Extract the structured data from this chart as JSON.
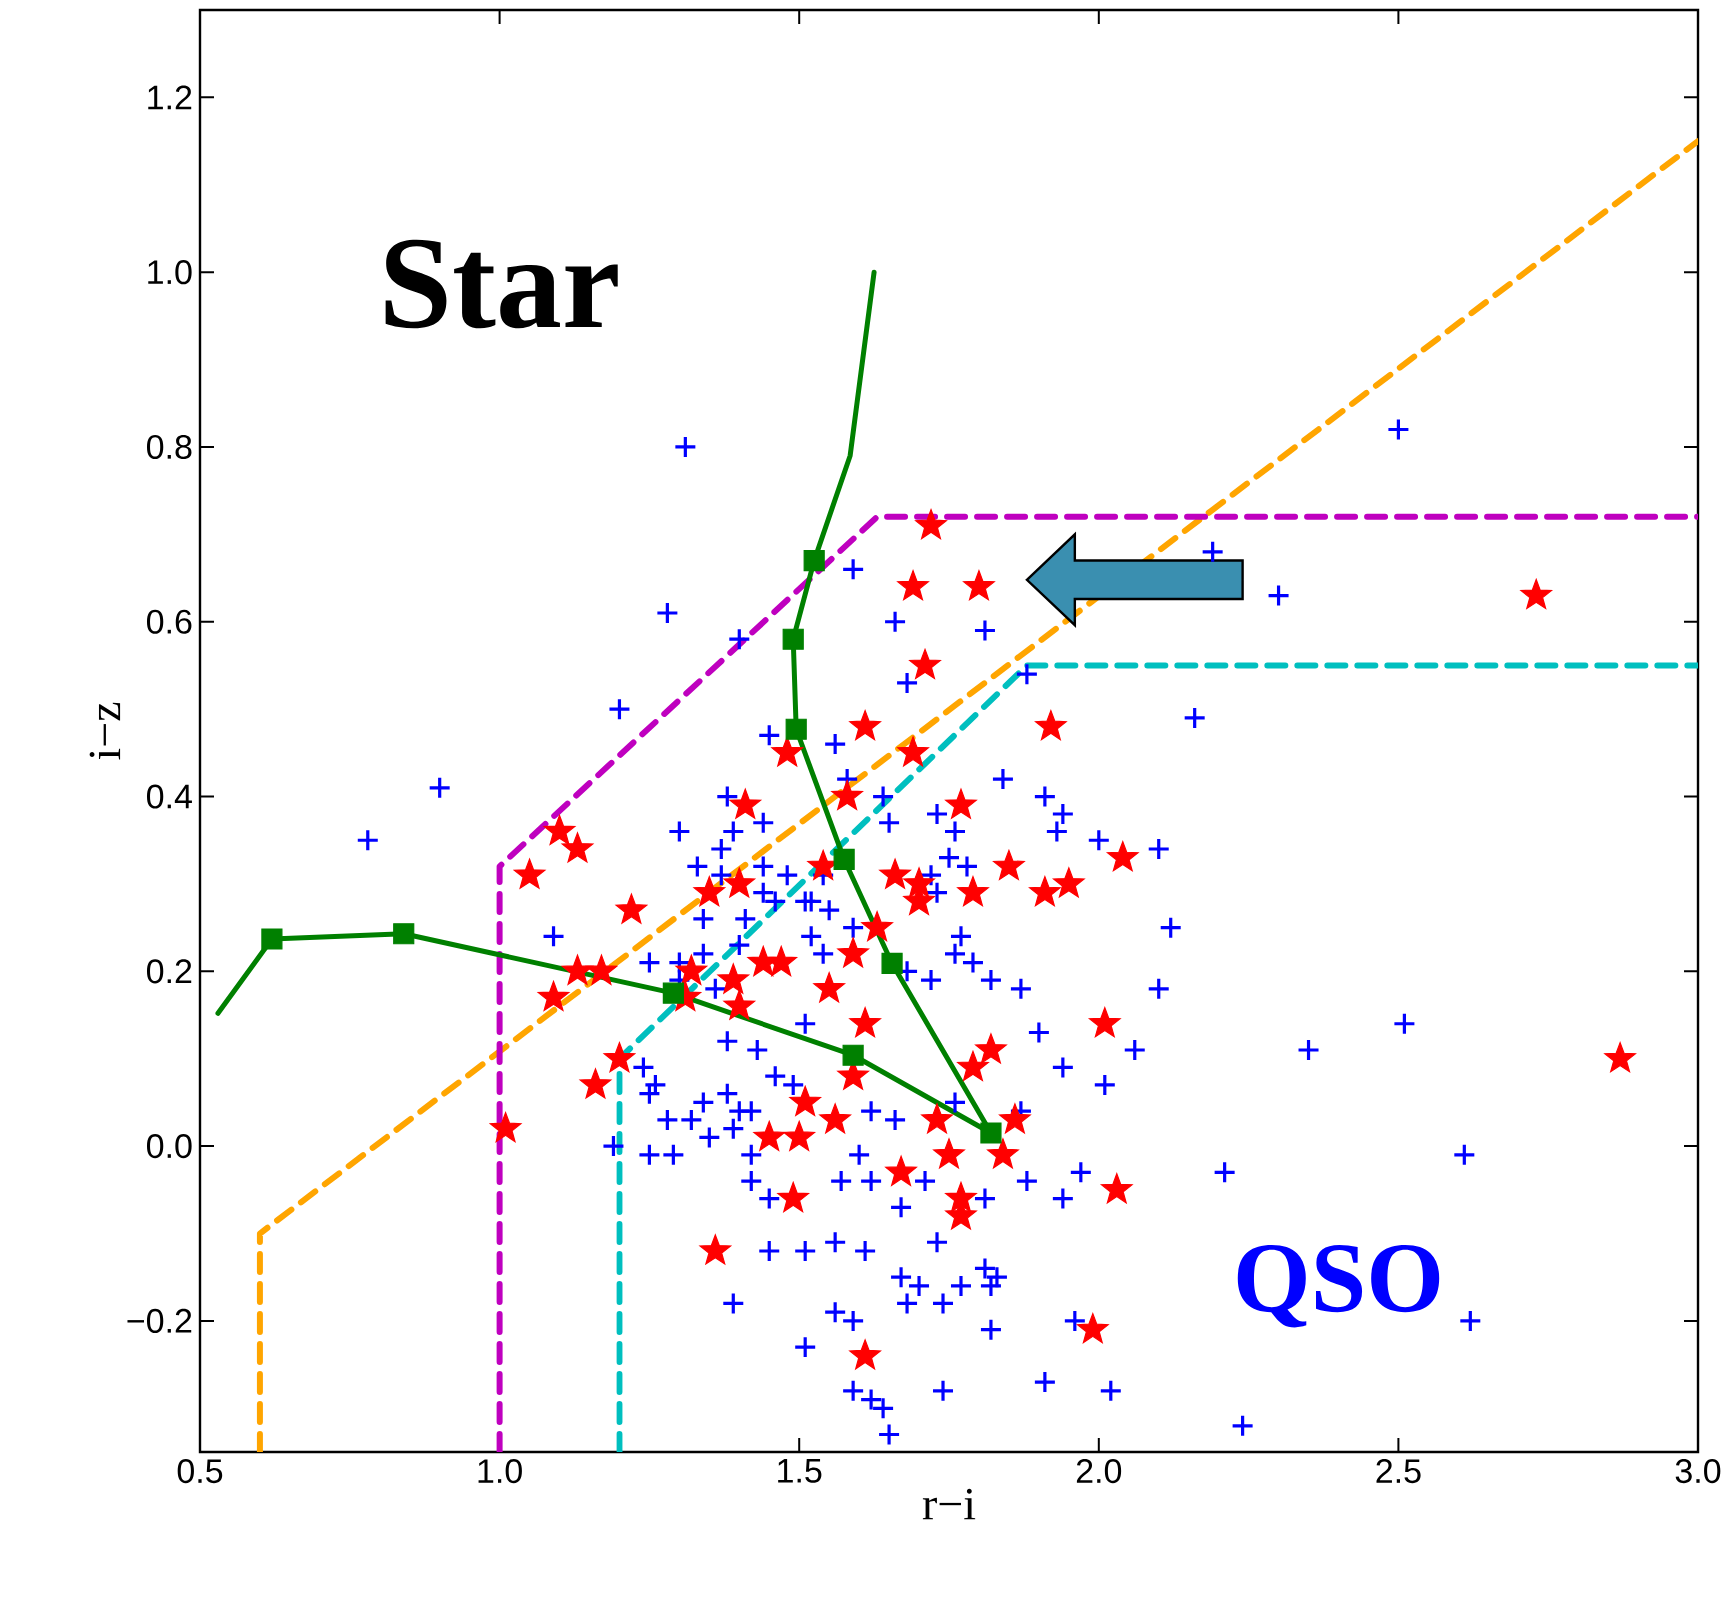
{
  "chart_data": {
    "type": "scatter",
    "xlabel": "r−i",
    "ylabel": "i−z",
    "xlim": [
      0.5,
      3.0
    ],
    "ylim": [
      -0.35,
      1.3
    ],
    "xticks": [
      {
        "value": 0.5,
        "label": "0.5"
      },
      {
        "value": 1.0,
        "label": "1.0"
      },
      {
        "value": 1.5,
        "label": "1.5"
      },
      {
        "value": 2.0,
        "label": "2.0"
      },
      {
        "value": 2.5,
        "label": "2.5"
      },
      {
        "value": 3.0,
        "label": "3.0"
      }
    ],
    "yticks": [
      {
        "value": -0.2,
        "label": "−0.2"
      },
      {
        "value": 0.0,
        "label": "0.0"
      },
      {
        "value": 0.2,
        "label": "0.2"
      },
      {
        "value": 0.4,
        "label": "0.4"
      },
      {
        "value": 0.6,
        "label": "0.6"
      },
      {
        "value": 0.8,
        "label": "0.8"
      },
      {
        "value": 1.0,
        "label": "1.0"
      },
      {
        "value": 1.2,
        "label": "1.2"
      }
    ],
    "annotations": [
      "Star",
      "QSO"
    ],
    "series": [
      {
        "type": "line",
        "color": "#ffa500",
        "line_style": "dashed",
        "marker": "none",
        "x": [
          0.6,
          0.6,
          3.0
        ],
        "values": [
          -0.35,
          -0.1,
          1.15
        ]
      },
      {
        "type": "line",
        "color": "#bf00bf",
        "line_style": "dashed",
        "marker": "none",
        "x": [
          1.0,
          1.0,
          1.63,
          3.0
        ],
        "values": [
          -0.35,
          0.32,
          0.72,
          0.72
        ]
      },
      {
        "type": "line",
        "color": "#00bfbf",
        "line_style": "dashed",
        "marker": "none",
        "x": [
          1.2,
          1.2,
          1.88,
          3.0
        ],
        "values": [
          -0.35,
          0.1,
          0.55,
          0.55
        ]
      },
      {
        "color": "#0000ff",
        "marker": "cross",
        "x": [
          1.31,
          2.5,
          1.28,
          1.4,
          1.2,
          1.45,
          1.38,
          1.3,
          1.39,
          1.44,
          1.37,
          1.33,
          1.44,
          1.48,
          1.37,
          1.44,
          1.46,
          1.51,
          1.09,
          1.34,
          1.41,
          1.4,
          1.25,
          1.3,
          1.34,
          1.36,
          1.66,
          1.81,
          1.68,
          1.88,
          1.56,
          1.58,
          1.84,
          1.91,
          1.94,
          1.93,
          2.0,
          1.64,
          1.65,
          1.73,
          1.76,
          1.75,
          1.78,
          1.72,
          1.73,
          1.54,
          1.52,
          1.55,
          1.59,
          1.52,
          1.77,
          1.76,
          1.79,
          1.82,
          1.87,
          1.72,
          1.68,
          1.54,
          1.24,
          1.26,
          1.25,
          1.28,
          1.34,
          1.32,
          1.38,
          1.35,
          1.4,
          1.42,
          1.39,
          1.19,
          1.25,
          1.29,
          1.42,
          1.42,
          1.45,
          1.45,
          1.51,
          1.39,
          1.51,
          1.3,
          1.38,
          1.43,
          1.46,
          1.49,
          1.51,
          1.9,
          1.94,
          2.01,
          1.87,
          1.76,
          1.66,
          1.62,
          1.6,
          1.57,
          1.62,
          1.71,
          1.81,
          1.88,
          1.94,
          1.97,
          1.67,
          1.56,
          1.61,
          1.73,
          1.67,
          1.7,
          1.68,
          1.74,
          1.77,
          1.81,
          1.83,
          1.82,
          1.56,
          1.59,
          1.82,
          1.59,
          1.62,
          1.64,
          1.74,
          1.65,
          1.91,
          2.02,
          1.96,
          2.1,
          2.12,
          2.1,
          2.06,
          2.21,
          2.35,
          2.51,
          2.61,
          2.24,
          2.62,
          2.19,
          2.3,
          2.16,
          0.9,
          0.78,
          1.59
        ],
        "values": [
          0.8,
          0.82,
          0.61,
          0.58,
          0.5,
          0.47,
          0.4,
          0.36,
          0.36,
          0.37,
          0.34,
          0.32,
          0.32,
          0.31,
          0.31,
          0.29,
          0.28,
          0.28,
          0.24,
          0.26,
          0.26,
          0.23,
          0.21,
          0.21,
          0.22,
          0.18,
          0.6,
          0.59,
          0.53,
          0.54,
          0.46,
          0.42,
          0.42,
          0.4,
          0.38,
          0.36,
          0.35,
          0.4,
          0.37,
          0.38,
          0.36,
          0.33,
          0.32,
          0.31,
          0.29,
          0.31,
          0.28,
          0.27,
          0.25,
          0.24,
          0.24,
          0.22,
          0.21,
          0.19,
          0.18,
          0.19,
          0.2,
          0.22,
          0.09,
          0.07,
          0.06,
          0.03,
          0.05,
          0.03,
          0.06,
          0.01,
          0.04,
          0.04,
          0.02,
          0.0,
          -0.01,
          -0.01,
          -0.01,
          -0.04,
          -0.06,
          -0.12,
          -0.12,
          -0.18,
          -0.23,
          0.19,
          0.12,
          0.11,
          0.08,
          0.07,
          0.14,
          0.13,
          0.09,
          0.07,
          0.04,
          0.05,
          0.03,
          0.04,
          -0.01,
          -0.04,
          -0.04,
          -0.04,
          -0.06,
          -0.04,
          -0.06,
          -0.03,
          -0.07,
          -0.11,
          -0.12,
          -0.11,
          -0.15,
          -0.16,
          -0.18,
          -0.18,
          -0.16,
          -0.14,
          -0.15,
          -0.16,
          -0.19,
          -0.2,
          -0.21,
          -0.28,
          -0.29,
          -0.3,
          -0.28,
          -0.33,
          -0.27,
          -0.28,
          -0.2,
          0.34,
          0.25,
          0.18,
          0.11,
          -0.03,
          0.11,
          0.14,
          -0.01,
          -0.32,
          -0.2,
          0.68,
          0.63,
          0.49,
          0.41,
          0.35,
          0.66
        ]
      },
      {
        "color": "#ff0000",
        "marker": "star",
        "x": [
          1.48,
          1.41,
          1.1,
          1.13,
          1.05,
          1.4,
          1.35,
          1.22,
          1.13,
          1.17,
          1.44,
          1.47,
          1.39,
          1.32,
          1.71,
          1.61,
          1.92,
          1.69,
          1.58,
          1.77,
          1.85,
          2.04,
          1.66,
          1.7,
          1.79,
          1.91,
          1.95,
          1.7,
          1.54,
          1.63,
          1.59,
          1.55,
          1.09,
          1.31,
          1.4,
          1.2,
          1.16,
          1.01,
          1.45,
          1.5,
          1.49,
          1.36,
          1.51,
          1.61,
          1.59,
          1.56,
          1.73,
          1.75,
          1.67,
          1.77,
          1.77,
          1.82,
          1.79,
          1.86,
          1.84,
          2.01,
          2.03,
          1.99,
          1.61,
          2.73,
          2.87,
          1.72,
          1.69,
          1.8
        ],
        "values": [
          0.45,
          0.39,
          0.36,
          0.34,
          0.31,
          0.3,
          0.29,
          0.27,
          0.2,
          0.2,
          0.21,
          0.21,
          0.19,
          0.2,
          0.55,
          0.48,
          0.48,
          0.45,
          0.4,
          0.39,
          0.32,
          0.33,
          0.31,
          0.3,
          0.29,
          0.29,
          0.3,
          0.28,
          0.32,
          0.25,
          0.22,
          0.18,
          0.17,
          0.17,
          0.16,
          0.1,
          0.07,
          0.02,
          0.01,
          0.01,
          -0.06,
          -0.12,
          0.05,
          0.14,
          0.08,
          0.03,
          0.03,
          -0.01,
          -0.03,
          -0.06,
          -0.08,
          0.11,
          0.09,
          0.03,
          -0.01,
          0.14,
          -0.05,
          -0.21,
          -0.24,
          0.63,
          0.1,
          0.71,
          0.64,
          0.64
        ]
      },
      {
        "type": "line",
        "color": "#008000",
        "marker": "none",
        "x": [
          0.53,
          0.62,
          0.84,
          1.29,
          1.59,
          1.82,
          1.655,
          1.575,
          1.495,
          1.49,
          1.525,
          1.585,
          1.625
        ],
        "values": [
          0.152,
          0.237,
          0.243,
          0.175,
          0.104,
          0.015,
          0.209,
          0.328,
          0.477,
          0.58,
          0.67,
          0.79,
          1.0
        ]
      },
      {
        "color": "#008000",
        "marker": "square",
        "x": [
          0.62,
          0.84,
          1.29,
          1.59,
          1.82,
          1.655,
          1.575,
          1.495,
          1.49,
          1.525
        ],
        "values": [
          0.237,
          0.243,
          0.175,
          0.104,
          0.015,
          0.209,
          0.328,
          0.477,
          0.58,
          0.67
        ]
      }
    ]
  }
}
